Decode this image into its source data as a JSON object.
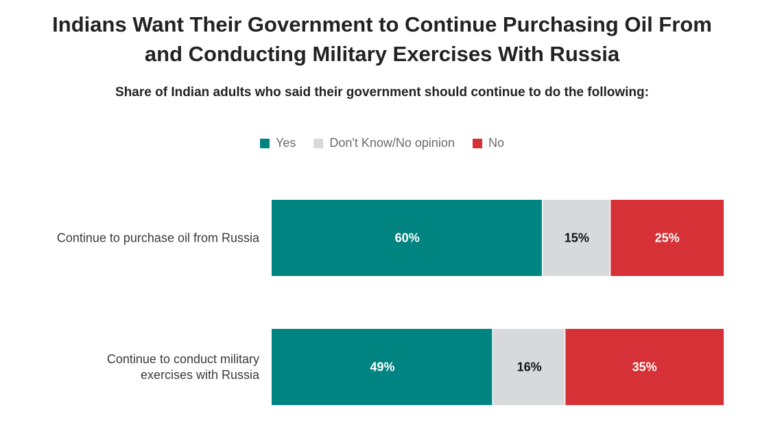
{
  "chart_data": {
    "type": "bar",
    "orientation": "horizontal",
    "stacked": true,
    "title_lines": [
      "Indians Want Their Government to Continue Purchasing Oil From",
      "and Conducting Military Exercises With Russia"
    ],
    "subtitle": "Share of Indian adults who said their government should continue to do the following:",
    "categories": [
      [
        "Continue to purchase oil from Russia"
      ],
      [
        "Continue to conduct military",
        "exercises with Russia"
      ]
    ],
    "series": [
      {
        "name": "Yes",
        "values": [
          60,
          49
        ],
        "labels": [
          "60%",
          "49%"
        ],
        "color": "#008482",
        "label_color": "#ffffff"
      },
      {
        "name": "Don't Know/No opinion",
        "values": [
          15,
          16
        ],
        "labels": [
          "15%",
          "16%"
        ],
        "color": "#d7d9da",
        "label_color": "#111111"
      },
      {
        "name": "No",
        "values": [
          25,
          35
        ],
        "labels": [
          "25%",
          "35%"
        ],
        "color": "#d63136",
        "label_color": "#ffffff"
      }
    ],
    "xlim": [
      0,
      100
    ],
    "grid": false,
    "legend_position": "top-center"
  }
}
